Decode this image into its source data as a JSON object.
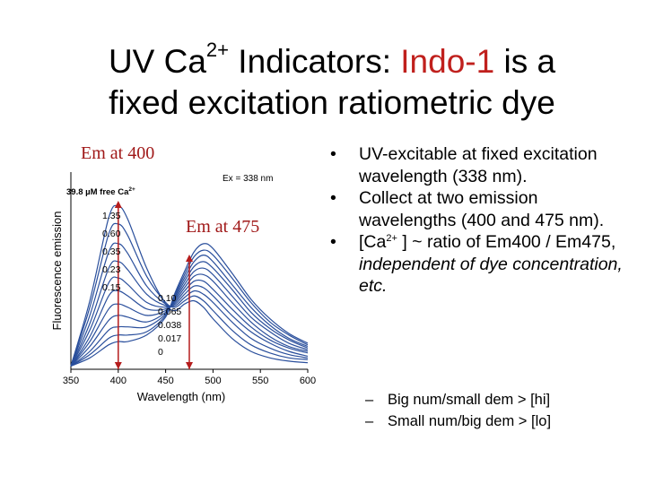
{
  "slide": {
    "title_part1": "UV Ca",
    "title_sup": "2+",
    "title_part2": " Indicators: ",
    "title_red": "Indo-1",
    "title_part3": " is a",
    "title_line2": "fixed excitation ratiometric dye",
    "em400_label": "Em at 400",
    "em475_label": "Em at 475",
    "bullets": [
      {
        "text": "UV-excitable at fixed excitation wavelength (338 nm)."
      },
      {
        "text": "Collect at two emission wavelengths (400 and 475 nm)."
      },
      {
        "pre": "[Ca",
        "sup": "2+",
        "post": " ] ~ ratio of Em400 / Em475, ",
        "italic": "independent of dye concentration, etc."
      }
    ],
    "sub_bullets": [
      "Big num/small dem > [hi]",
      "Small num/big dem > [lo]"
    ],
    "bullet_glyph": "•",
    "dash_glyph": "–"
  },
  "chart_data": {
    "type": "line",
    "xlabel": "Wavelength (nm)",
    "ylabel": "Fluorescence emission",
    "xlim": [
      350,
      600
    ],
    "xticks": [
      350,
      400,
      450,
      500,
      550,
      600
    ],
    "annotation": "Ex = 338 nm",
    "top_label": "39.8 µM free Ca",
    "top_label_sup": "2+",
    "x": [
      350,
      370,
      390,
      400,
      410,
      430,
      450,
      460,
      470,
      480,
      490,
      500,
      520,
      540,
      560,
      580,
      600
    ],
    "series": [
      {
        "name": "39.8",
        "values": [
          0.02,
          0.42,
          0.93,
          1.0,
          0.92,
          0.62,
          0.4,
          0.36,
          0.4,
          0.42,
          0.38,
          0.31,
          0.19,
          0.11,
          0.07,
          0.05,
          0.04
        ]
      },
      {
        "name": "1.35",
        "values": [
          0.02,
          0.38,
          0.83,
          0.89,
          0.82,
          0.57,
          0.41,
          0.38,
          0.42,
          0.45,
          0.42,
          0.36,
          0.24,
          0.15,
          0.1,
          0.07,
          0.06
        ]
      },
      {
        "name": "0.60",
        "values": [
          0.02,
          0.33,
          0.72,
          0.77,
          0.71,
          0.51,
          0.4,
          0.39,
          0.44,
          0.48,
          0.46,
          0.41,
          0.29,
          0.19,
          0.13,
          0.09,
          0.07
        ]
      },
      {
        "name": "0.35",
        "values": [
          0.02,
          0.28,
          0.62,
          0.66,
          0.61,
          0.46,
          0.39,
          0.4,
          0.46,
          0.51,
          0.5,
          0.45,
          0.33,
          0.23,
          0.16,
          0.11,
          0.08
        ]
      },
      {
        "name": "0.23",
        "values": [
          0.02,
          0.24,
          0.53,
          0.56,
          0.52,
          0.41,
          0.38,
          0.41,
          0.48,
          0.54,
          0.54,
          0.49,
          0.37,
          0.26,
          0.18,
          0.13,
          0.1
        ]
      },
      {
        "name": "0.15",
        "values": [
          0.02,
          0.2,
          0.45,
          0.48,
          0.45,
          0.37,
          0.37,
          0.42,
          0.5,
          0.57,
          0.58,
          0.54,
          0.41,
          0.29,
          0.2,
          0.14,
          0.11
        ]
      },
      {
        "name": "0.10",
        "values": [
          0.02,
          0.17,
          0.37,
          0.4,
          0.38,
          0.33,
          0.36,
          0.43,
          0.52,
          0.6,
          0.62,
          0.58,
          0.45,
          0.32,
          0.23,
          0.16,
          0.12
        ]
      },
      {
        "name": "0.065",
        "values": [
          0.02,
          0.14,
          0.3,
          0.33,
          0.32,
          0.29,
          0.35,
          0.44,
          0.54,
          0.63,
          0.66,
          0.62,
          0.49,
          0.35,
          0.25,
          0.18,
          0.13
        ]
      },
      {
        "name": "0.038",
        "values": [
          0.02,
          0.11,
          0.24,
          0.26,
          0.26,
          0.26,
          0.34,
          0.45,
          0.56,
          0.66,
          0.7,
          0.66,
          0.52,
          0.38,
          0.27,
          0.19,
          0.14
        ]
      },
      {
        "name": "0.017",
        "values": [
          0.02,
          0.09,
          0.19,
          0.21,
          0.21,
          0.23,
          0.33,
          0.46,
          0.58,
          0.69,
          0.73,
          0.7,
          0.56,
          0.41,
          0.29,
          0.21,
          0.15
        ]
      },
      {
        "name": "0",
        "values": [
          0.02,
          0.07,
          0.15,
          0.17,
          0.17,
          0.21,
          0.32,
          0.47,
          0.6,
          0.72,
          0.77,
          0.74,
          0.59,
          0.43,
          0.31,
          0.22,
          0.16
        ]
      }
    ],
    "curve_labels": [
      "1.35",
      "0.60",
      "0.35",
      "0.23",
      "0.15",
      "0.10",
      "0.065",
      "0.038",
      "0.017",
      "0"
    ],
    "markers": [
      400,
      475
    ],
    "line_color": "#2a4f9c",
    "marker_color": "#b51c1c",
    "grid": false
  }
}
